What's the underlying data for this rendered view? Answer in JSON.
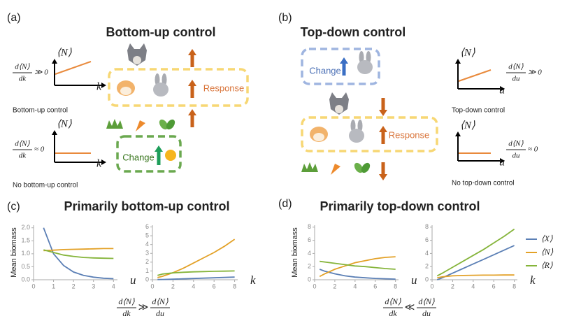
{
  "panel_a": {
    "label": "(a)",
    "title": "Bottom-up control",
    "plot1": {
      "ylabel": "⟨N⟩",
      "xlabel": "k",
      "formula": {
        "numerator": "d⟨N⟩",
        "denominator": "dk",
        "relation": "≫ 0"
      },
      "caption": "Bottom-up control"
    },
    "plot2": {
      "ylabel": "⟨N⟩",
      "xlabel": "k",
      "formula": {
        "numerator": "d⟨N⟩",
        "denominator": "dk",
        "relation": "≈ 0"
      },
      "caption": "No bottom-up control"
    },
    "response": "Response",
    "change": "Change"
  },
  "panel_b": {
    "label": "(b)",
    "title": "Top-down control",
    "plot1": {
      "ylabel": "⟨N⟩",
      "xlabel": "u",
      "formula": {
        "numerator": "d⟨N⟩",
        "denominator": "du",
        "relation": "≫ 0"
      },
      "caption": "Top-down control"
    },
    "plot2": {
      "ylabel": "⟨N⟩",
      "xlabel": "u",
      "formula": {
        "numerator": "d⟨N⟩",
        "denominator": "du",
        "relation": "≈ 0"
      },
      "caption": "No top-down control"
    },
    "response": "Response",
    "change": "Change"
  },
  "panel_c": {
    "label": "(c)",
    "title": "Primarily bottom-up control",
    "formula": {
      "left": {
        "numerator": "d⟨N⟩",
        "denominator": "dk"
      },
      "relation": "≫",
      "right": {
        "numerator": "d⟨N⟩",
        "denominator": "du"
      }
    }
  },
  "panel_d": {
    "label": "(d)",
    "title": "Primarily top-down control",
    "formula": {
      "left": {
        "numerator": "d⟨N⟩",
        "denominator": "dk"
      },
      "relation": "≪",
      "right": {
        "numerator": "d⟨N⟩",
        "denominator": "du"
      }
    }
  },
  "chart_data": [
    {
      "type": "line",
      "ylabel": "Mean biomass",
      "xlabel": "u",
      "x": [
        0.5,
        1,
        1.5,
        2,
        2.5,
        3,
        3.5,
        4
      ],
      "xlim": [
        0,
        4.2
      ],
      "xticks": [
        0,
        1,
        2,
        3,
        4
      ],
      "ylim": [
        0,
        2.1
      ],
      "yticks": [
        {
          "value": 0,
          "label": "0.0"
        },
        0.5,
        {
          "value": 1,
          "label": "1.0"
        },
        1.5,
        {
          "value": 2,
          "label": "2.0"
        }
      ],
      "series": [
        {
          "color": "#5b7fb5",
          "values": [
            2.0,
            1.0,
            0.55,
            0.3,
            0.17,
            0.1,
            0.06,
            0.04
          ]
        },
        {
          "color": "#e3a127",
          "values": [
            1.12,
            1.14,
            1.16,
            1.17,
            1.18,
            1.19,
            1.2,
            1.2
          ]
        },
        {
          "color": "#85b43a",
          "values": [
            1.15,
            1.05,
            0.95,
            0.9,
            0.86,
            0.84,
            0.83,
            0.82
          ]
        }
      ]
    },
    {
      "type": "line",
      "xlabel": "k",
      "x": [
        0.5,
        1,
        2,
        3,
        4,
        5,
        6,
        7,
        8
      ],
      "xlim": [
        0,
        8.3
      ],
      "xticks": [
        0,
        2,
        4,
        6,
        8
      ],
      "ylim": [
        0,
        6.2
      ],
      "yticks": [
        0,
        1,
        2,
        3,
        4,
        5,
        6
      ],
      "series": [
        {
          "color": "#5b7fb5",
          "values": [
            0.02,
            0.03,
            0.06,
            0.1,
            0.14,
            0.18,
            0.22,
            0.26,
            0.3
          ]
        },
        {
          "color": "#e3a127",
          "values": [
            0.25,
            0.4,
            0.8,
            1.3,
            1.9,
            2.5,
            3.1,
            3.8,
            4.6
          ]
        },
        {
          "color": "#85b43a",
          "values": [
            0.5,
            0.65,
            0.78,
            0.85,
            0.9,
            0.93,
            0.96,
            0.98,
            1.0
          ]
        }
      ]
    },
    {
      "type": "line",
      "ylabel": "Mean biomass",
      "xlabel": "u",
      "x": [
        0.5,
        1,
        2,
        3,
        4,
        5,
        6,
        7,
        8
      ],
      "xlim": [
        0,
        8.3
      ],
      "xticks": [
        0,
        2,
        4,
        6,
        8
      ],
      "ylim": [
        0,
        8.3
      ],
      "yticks": [
        0,
        2,
        4,
        6,
        8
      ],
      "series": [
        {
          "color": "#5b7fb5",
          "values": [
            1.6,
            1.3,
            0.9,
            0.6,
            0.4,
            0.3,
            0.2,
            0.15,
            0.1
          ]
        },
        {
          "color": "#e3a127",
          "values": [
            0.5,
            0.9,
            1.6,
            2.1,
            2.6,
            2.9,
            3.2,
            3.4,
            3.5
          ]
        },
        {
          "color": "#85b43a",
          "values": [
            2.8,
            2.7,
            2.5,
            2.3,
            2.1,
            2.0,
            1.85,
            1.7,
            1.6
          ]
        }
      ]
    },
    {
      "type": "line",
      "xlabel": "k",
      "x": [
        0.5,
        1,
        2,
        3,
        4,
        5,
        6,
        7,
        8
      ],
      "xlim": [
        0,
        8.3
      ],
      "xticks": [
        0,
        2,
        4,
        6,
        8
      ],
      "ylim": [
        0,
        8.3
      ],
      "yticks": [
        0,
        2,
        4,
        6,
        8
      ],
      "series": [
        {
          "name": "⟨X⟩",
          "color": "#5b7fb5",
          "values": [
            0,
            0.3,
            1.0,
            1.7,
            2.4,
            3.1,
            3.8,
            4.5,
            5.2
          ]
        },
        {
          "name": "⟨N⟩",
          "color": "#e3a127",
          "values": [
            0.3,
            0.45,
            0.6,
            0.65,
            0.68,
            0.7,
            0.7,
            0.72,
            0.72
          ]
        },
        {
          "name": "⟨R⟩",
          "color": "#85b43a",
          "values": [
            0.6,
            1.0,
            1.9,
            2.8,
            3.7,
            4.6,
            5.6,
            6.6,
            7.7
          ]
        }
      ]
    }
  ]
}
